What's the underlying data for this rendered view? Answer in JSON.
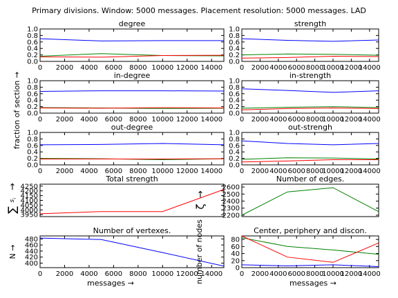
{
  "figure": {
    "suptitle": "Primary divisions. Window: 5000 messages. Placement resolution: 5000 messages. LAD",
    "xlabel": "messages →",
    "shared_ylabel": "fraction of section →"
  },
  "colors": {
    "blue": "#0000ff",
    "green": "#008000",
    "red": "#ff0000"
  },
  "chart_data": [
    {
      "type": "line",
      "title": "degree",
      "x": [
        0,
        5000,
        10000,
        15000
      ],
      "xlim": [
        0,
        15000
      ],
      "xticks": [
        0,
        2000,
        4000,
        6000,
        8000,
        10000,
        12000,
        14000
      ],
      "ylim": [
        0,
        1
      ],
      "yticks": [
        "0.0",
        "0.2",
        "0.4",
        "0.6",
        "0.8",
        "1.0"
      ],
      "series": [
        {
          "color": "#0000ff",
          "values": [
            0.7,
            0.63,
            0.64,
            0.64
          ]
        },
        {
          "color": "#008000",
          "values": [
            0.16,
            0.24,
            0.18,
            0.17
          ]
        },
        {
          "color": "#ff0000",
          "values": [
            0.14,
            0.13,
            0.18,
            0.19
          ]
        }
      ]
    },
    {
      "type": "line",
      "title": "strength",
      "x": [
        0,
        5000,
        10000,
        15000
      ],
      "xlim": [
        0,
        15000
      ],
      "xticks": [
        0,
        2000,
        4000,
        6000,
        8000,
        10000,
        12000,
        14000
      ],
      "ylim": [
        0,
        1
      ],
      "yticks": [
        "0.0",
        "0.2",
        "0.4",
        "0.6",
        "0.8",
        "1.0"
      ],
      "series": [
        {
          "color": "#0000ff",
          "values": [
            0.7,
            0.65,
            0.62,
            0.66
          ]
        },
        {
          "color": "#008000",
          "values": [
            0.2,
            0.23,
            0.22,
            0.19
          ]
        },
        {
          "color": "#ff0000",
          "values": [
            0.1,
            0.12,
            0.16,
            0.15
          ]
        }
      ]
    },
    {
      "type": "line",
      "title": "in-degree",
      "x": [
        0,
        5000,
        10000,
        15000
      ],
      "xlim": [
        0,
        15000
      ],
      "xticks": [
        0,
        2000,
        4000,
        6000,
        8000,
        10000,
        12000,
        14000
      ],
      "ylim": [
        0,
        1
      ],
      "yticks": [
        "0.0",
        "0.2",
        "0.4",
        "0.6",
        "0.8",
        "1.0"
      ],
      "series": [
        {
          "color": "#0000ff",
          "values": [
            0.67,
            0.69,
            0.69,
            0.68
          ]
        },
        {
          "color": "#008000",
          "values": [
            0.17,
            0.16,
            0.14,
            0.15
          ]
        },
        {
          "color": "#ff0000",
          "values": [
            0.16,
            0.15,
            0.17,
            0.16
          ]
        }
      ]
    },
    {
      "type": "line",
      "title": "in-strength",
      "x": [
        0,
        5000,
        10000,
        15000
      ],
      "xlim": [
        0,
        15000
      ],
      "xticks": [
        0,
        2000,
        4000,
        6000,
        8000,
        10000,
        12000,
        14000
      ],
      "ylim": [
        0,
        1
      ],
      "yticks": [
        "0.0",
        "0.2",
        "0.4",
        "0.6",
        "0.8",
        "1.0"
      ],
      "series": [
        {
          "color": "#0000ff",
          "values": [
            0.75,
            0.7,
            0.64,
            0.69
          ]
        },
        {
          "color": "#008000",
          "values": [
            0.15,
            0.18,
            0.2,
            0.17
          ]
        },
        {
          "color": "#ff0000",
          "values": [
            0.1,
            0.14,
            0.16,
            0.14
          ]
        }
      ]
    },
    {
      "type": "line",
      "title": "out-degree",
      "x": [
        0,
        5000,
        10000,
        15000
      ],
      "xlim": [
        0,
        15000
      ],
      "xticks": [
        0,
        2000,
        4000,
        6000,
        8000,
        10000,
        12000,
        14000
      ],
      "ylim": [
        0,
        1
      ],
      "yticks": [
        "0.0",
        "0.2",
        "0.4",
        "0.6",
        "0.8",
        "1.0"
      ],
      "series": [
        {
          "color": "#0000ff",
          "values": [
            0.62,
            0.63,
            0.66,
            0.62
          ]
        },
        {
          "color": "#008000",
          "values": [
            0.2,
            0.19,
            0.16,
            0.19
          ]
        },
        {
          "color": "#ff0000",
          "values": [
            0.18,
            0.18,
            0.18,
            0.19
          ]
        }
      ]
    },
    {
      "type": "line",
      "title": "out-strengh",
      "x": [
        0,
        5000,
        10000,
        15000
      ],
      "xlim": [
        0,
        15000
      ],
      "xticks": [
        0,
        2000,
        4000,
        6000,
        8000,
        10000,
        12000,
        14000
      ],
      "ylim": [
        0,
        1
      ],
      "yticks": [
        "0.0",
        "0.2",
        "0.4",
        "0.6",
        "0.8",
        "1.0"
      ],
      "series": [
        {
          "color": "#0000ff",
          "values": [
            0.74,
            0.66,
            0.62,
            0.66
          ]
        },
        {
          "color": "#008000",
          "values": [
            0.17,
            0.22,
            0.21,
            0.18
          ]
        },
        {
          "color": "#ff0000",
          "values": [
            0.09,
            0.12,
            0.16,
            0.16
          ]
        }
      ]
    },
    {
      "type": "line",
      "title": "Total strength",
      "ylabel_glyph": "∑",
      "ylabel_sub": "s",
      "ylabel_subsub": "i",
      "ylabel_arrow": "→",
      "x": [
        0,
        5000,
        10000,
        15000
      ],
      "xlim": [
        0,
        15000
      ],
      "xticks": [],
      "ylim": [
        3930,
        4270
      ],
      "yticks": [
        "3950",
        "4000",
        "4050",
        "4100",
        "4150",
        "4200",
        "4250"
      ],
      "series": [
        {
          "color": "#ff0000",
          "values": [
            3960,
            3983,
            3983,
            4215
          ]
        }
      ]
    },
    {
      "type": "line",
      "title": "Number of edges.",
      "ylabel_glyph": "ζ",
      "ylabel_arrow": "→",
      "x": [
        0,
        5000,
        10000,
        15000
      ],
      "xlim": [
        0,
        15000
      ],
      "xticks": [],
      "ylim": [
        2180,
        2640
      ],
      "yticks": [
        "2200",
        "2300",
        "2400",
        "2500",
        "2600"
      ],
      "series": [
        {
          "color": "#008000",
          "values": [
            2200,
            2530,
            2590,
            2250
          ]
        }
      ]
    },
    {
      "type": "line",
      "title": "Number of vertexes.",
      "ylabel": "N →",
      "x": [
        0,
        5000,
        10000,
        15000
      ],
      "xlim": [
        0,
        15000
      ],
      "xticks": [
        0,
        2000,
        4000,
        6000,
        8000,
        10000,
        12000,
        14000
      ],
      "ylim": [
        385,
        490
      ],
      "yticks": [
        "400",
        "420",
        "440",
        "460",
        "480"
      ],
      "series": [
        {
          "color": "#0000ff",
          "values": [
            483,
            478,
            435,
            390
          ]
        }
      ]
    },
    {
      "type": "line",
      "title": "Center, periphery and discon.",
      "ylabel": "number of nodes",
      "x": [
        0,
        5000,
        10000,
        15000
      ],
      "xlim": [
        0,
        15000
      ],
      "xticks": [
        0,
        2000,
        4000,
        6000,
        8000,
        10000,
        12000,
        14000
      ],
      "ylim": [
        0,
        90
      ],
      "yticks": [
        "0",
        "20",
        "40",
        "60",
        "80"
      ],
      "series": [
        {
          "color": "#008000",
          "values": [
            85,
            60,
            50,
            38
          ]
        },
        {
          "color": "#ff0000",
          "values": [
            90,
            30,
            15,
            70
          ]
        },
        {
          "color": "#0000ff",
          "values": [
            8,
            5,
            8,
            3
          ]
        }
      ]
    }
  ]
}
